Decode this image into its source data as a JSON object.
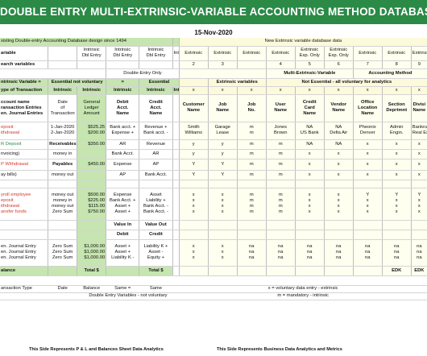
{
  "title": "DOUBLE ENTRY MULTI-EXTRINSIC-VARIABLE ACCOUNTING METHOD DATABASE",
  "date": "15-Nov-2020",
  "rows": [
    {
      "h": 10,
      "cells": [
        {
          "t": "xisting Double-entry Accounting Database design since 1494",
          "span": 5,
          "cls": "l g v"
        },
        {
          "t": "",
          "cls": "g v"
        },
        {
          "t": "New Extrinsic variable database data",
          "span": 9,
          "cls": "c y"
        }
      ]
    },
    {
      "h": 18,
      "cells": [
        {
          "t": "ariable",
          "cls": "l b v"
        },
        {
          "t": "",
          "cls": "v"
        },
        {
          "t": "Intrinsic\nDbl Entry",
          "cls": "c v"
        },
        {
          "t": "Intrinsic\nDbl Entry",
          "cls": "c v"
        },
        {
          "t": "Intrinsic\nDbl Entry",
          "cls": "c v"
        },
        {
          "t": "Intrinsic",
          "cls": "c v"
        },
        {
          "t": "Extrinsic",
          "cls": "c yl v"
        },
        {
          "t": "Extrinsic",
          "cls": "c yl v"
        },
        {
          "t": "Extrinsic",
          "cls": "c yl v"
        },
        {
          "t": "Extrinsic",
          "cls": "c yl v"
        },
        {
          "t": "Extrinsic\nExp. Only",
          "cls": "c yl v"
        },
        {
          "t": "Extrinsic\nExp. Only",
          "cls": "c yl v"
        },
        {
          "t": "Extrinsic",
          "cls": "c yl v"
        },
        {
          "t": "Extrinsic",
          "cls": "c yl v"
        },
        {
          "t": "Extrinsic",
          "cls": "c yl"
        }
      ]
    },
    {
      "h": 10,
      "cells": [
        {
          "t": "earch variables",
          "cls": "l b v"
        },
        {
          "t": "",
          "cls": "v"
        },
        {
          "t": "",
          "cls": "v"
        },
        {
          "t": "",
          "cls": "v"
        },
        {
          "t": "",
          "cls": "v"
        },
        {
          "t": "",
          "cls": "v"
        },
        {
          "t": "2",
          "cls": "c yl v"
        },
        {
          "t": "3",
          "cls": "c yl v"
        },
        {
          "t": "",
          "cls": "c yl v"
        },
        {
          "t": "4",
          "cls": "c yl v"
        },
        {
          "t": "5",
          "cls": "c yl v"
        },
        {
          "t": "6",
          "cls": "c yl v"
        },
        {
          "t": "7",
          "cls": "c yl v"
        },
        {
          "t": "8",
          "cls": "c yl v"
        },
        {
          "t": "9",
          "cls": "c yl"
        }
      ]
    },
    {
      "h": 12,
      "cells": [
        {
          "t": "",
          "span": 3,
          "cls": "v"
        },
        {
          "t": "Double-Entry Only",
          "span": 3,
          "cls": "c v"
        },
        {
          "t": "",
          "span": 3,
          "cls": "yl v"
        },
        {
          "t": "Multi-Extrinsic-Variable",
          "span": 3,
          "cls": "c b yl v"
        },
        {
          "t": "Accounting Method",
          "span": 3,
          "cls": "c b yl"
        }
      ]
    },
    {
      "h": 10,
      "cells": [
        {
          "t": "ntrinsic Variable   =",
          "cls": "l b g v"
        },
        {
          "t": "Essential not voluntary",
          "span": 2,
          "cls": "c b g v"
        },
        {
          "t": "=",
          "cls": "c b g v"
        },
        {
          "t": "Essential",
          "span": 2,
          "cls": "c b g v"
        },
        {
          "t": "",
          "cls": "y v"
        },
        {
          "t": "Extrinsic variables",
          "span": 2,
          "cls": "c b y v"
        },
        {
          "t": "Not Essential - all voluntary for analytics",
          "span": 6,
          "cls": "c b y"
        }
      ]
    },
    {
      "h": 10,
      "cells": [
        {
          "t": "ype of Transaction",
          "cls": "l b g v"
        },
        {
          "t": "Intrinsic",
          "cls": "c b g v"
        },
        {
          "t": "Intrinsic",
          "cls": "c b g v"
        },
        {
          "t": "Intrinsic",
          "cls": "c b g v"
        },
        {
          "t": "Intrinsic",
          "cls": "c b g v"
        },
        {
          "t": "Intrinsic",
          "cls": "c b g v"
        },
        {
          "t": "x",
          "cls": "c y v"
        },
        {
          "t": "x",
          "cls": "c y v"
        },
        {
          "t": "x",
          "cls": "c y v"
        },
        {
          "t": "x",
          "cls": "c y v"
        },
        {
          "t": "x",
          "cls": "c y v"
        },
        {
          "t": "x",
          "cls": "c y v"
        },
        {
          "t": "x",
          "cls": "c y v"
        },
        {
          "t": "x",
          "cls": "c y v"
        },
        {
          "t": "x",
          "cls": "c y"
        }
      ]
    },
    {
      "h": 34,
      "cells": [
        {
          "t": "ccount name\nransaction Entries\nen. Journal Entries",
          "cls": "l b v"
        },
        {
          "t": "Date\nof\nTransaction",
          "cls": "c v"
        },
        {
          "t": "General\nLedger\nAmount",
          "cls": "c g v"
        },
        {
          "t": "Debit\nAcct.\nName",
          "cls": "c b v"
        },
        {
          "t": "Credit\nAcct.\nName",
          "cls": "c b v"
        },
        {
          "t": "",
          "cls": "v"
        },
        {
          "t": "Customer\nName",
          "cls": "c b yl v"
        },
        {
          "t": "Job\nName",
          "cls": "c b yl v"
        },
        {
          "t": "Job\nNo.",
          "cls": "c b yl v"
        },
        {
          "t": "User\nName",
          "cls": "c b yl v"
        },
        {
          "t": "Credit\nCard\nName",
          "cls": "c b yl v"
        },
        {
          "t": "Vendor\nName",
          "cls": "c b yl v"
        },
        {
          "t": "Office\nLocation\nName",
          "cls": "c b yl v"
        },
        {
          "t": "Section\nDeprtmnt",
          "cls": "c b yl v"
        },
        {
          "t": "Divisi\nName",
          "cls": "c b yl"
        }
      ]
    },
    {
      "h": 22,
      "cells": [
        {
          "t": "eposit\nithdrawal",
          "cls": "l red v"
        },
        {
          "t": "1-Jan-2020\n2-Jan-2020",
          "cls": "c v"
        },
        {
          "t": "$525.25\n$200.00",
          "cls": "r g v"
        },
        {
          "t": "Bank acct. +\nExpense +",
          "cls": "c v"
        },
        {
          "t": "Revenue +\nBank acct. -",
          "cls": "c v"
        },
        {
          "t": "",
          "cls": "v"
        },
        {
          "t": "Smith\nWilliams",
          "cls": "c yl v"
        },
        {
          "t": "Garage\nLease",
          "cls": "c yl v"
        },
        {
          "t": "m\nm",
          "cls": "c yl v"
        },
        {
          "t": "Jones\nBrown",
          "cls": "c yl v"
        },
        {
          "t": "NA\nUS Bank",
          "cls": "c yl v"
        },
        {
          "t": "NA\nDelta Air",
          "cls": "c yl v"
        },
        {
          "t": "Pheonix\nDenver",
          "cls": "c yl v"
        },
        {
          "t": "Admin\nEngin.",
          "cls": "c yl v"
        },
        {
          "t": "Bankrup\nReal Est",
          "cls": "c yl"
        }
      ]
    },
    {
      "h": 12,
      "cells": [
        {
          "t": "R Deposit",
          "cls": "l grn v"
        },
        {
          "t": "Receivables",
          "cls": "c b v"
        },
        {
          "t": "$350.00",
          "cls": "r g v"
        },
        {
          "t": "AR",
          "cls": "c v"
        },
        {
          "t": "Revenue",
          "cls": "c v"
        },
        {
          "t": "",
          "cls": "v"
        },
        {
          "t": "y",
          "cls": "c yl v"
        },
        {
          "t": "y",
          "cls": "c yl v"
        },
        {
          "t": "m",
          "cls": "c yl v"
        },
        {
          "t": "m",
          "cls": "c yl v"
        },
        {
          "t": "NA",
          "cls": "c yl v"
        },
        {
          "t": "NA",
          "cls": "c yl v"
        },
        {
          "t": "x",
          "cls": "c yl v"
        },
        {
          "t": "x",
          "cls": "c yl v"
        },
        {
          "t": "x",
          "cls": "c yl"
        }
      ]
    },
    {
      "h": 12,
      "cells": [
        {
          "t": "nvoicing)",
          "cls": "l v"
        },
        {
          "t": "money in",
          "cls": "c v"
        },
        {
          "t": "",
          "cls": "g v"
        },
        {
          "t": "Bank Acct.",
          "cls": "c v"
        },
        {
          "t": "AR",
          "cls": "c v"
        },
        {
          "t": "",
          "cls": "v"
        },
        {
          "t": "y",
          "cls": "c yl v"
        },
        {
          "t": "y",
          "cls": "c yl v"
        },
        {
          "t": "m",
          "cls": "c yl v"
        },
        {
          "t": "m",
          "cls": "c yl v"
        },
        {
          "t": "x",
          "cls": "c yl v"
        },
        {
          "t": "x",
          "cls": "c yl v"
        },
        {
          "t": "x",
          "cls": "c yl v"
        },
        {
          "t": "x",
          "cls": "c yl v"
        },
        {
          "t": "x",
          "cls": "c yl"
        }
      ]
    },
    {
      "h": 14,
      "cells": [
        {
          "t": "P Withdrawal",
          "cls": "l red v"
        },
        {
          "t": "Payables",
          "cls": "c b v"
        },
        {
          "t": "$450.00",
          "cls": "r g v"
        },
        {
          "t": "Expense",
          "cls": "c v"
        },
        {
          "t": "AP",
          "cls": "c v"
        },
        {
          "t": "",
          "cls": "v"
        },
        {
          "t": "Y",
          "cls": "c yl v"
        },
        {
          "t": "Y",
          "cls": "c yl v"
        },
        {
          "t": "m",
          "cls": "c yl v"
        },
        {
          "t": "m",
          "cls": "c yl v"
        },
        {
          "t": "x",
          "cls": "c yl v"
        },
        {
          "t": "x",
          "cls": "c yl v"
        },
        {
          "t": "x",
          "cls": "c yl v"
        },
        {
          "t": "x",
          "cls": "c yl v"
        },
        {
          "t": "x",
          "cls": "c yl"
        }
      ]
    },
    {
      "h": 12,
      "cells": [
        {
          "t": "ay bills)",
          "cls": "l v"
        },
        {
          "t": "money out",
          "cls": "c v"
        },
        {
          "t": "",
          "cls": "g v"
        },
        {
          "t": "AP",
          "cls": "c v"
        },
        {
          "t": "Bank Acct.",
          "cls": "c v"
        },
        {
          "t": "",
          "cls": "v"
        },
        {
          "t": "Y",
          "cls": "c yl v"
        },
        {
          "t": "Y",
          "cls": "c yl v"
        },
        {
          "t": "m",
          "cls": "c yl v"
        },
        {
          "t": "m",
          "cls": "c yl v"
        },
        {
          "t": "x",
          "cls": "c yl v"
        },
        {
          "t": "x",
          "cls": "c yl v"
        },
        {
          "t": "x",
          "cls": "c yl v"
        },
        {
          "t": "x",
          "cls": "c yl v"
        },
        {
          "t": "x",
          "cls": "c yl"
        }
      ]
    },
    {
      "h": 10,
      "cells": [
        {
          "t": "",
          "cls": "v"
        },
        {
          "t": "",
          "cls": "v"
        },
        {
          "t": "",
          "cls": "g v"
        },
        {
          "t": "",
          "cls": "v"
        },
        {
          "t": "",
          "cls": "v"
        },
        {
          "t": "",
          "cls": "v"
        },
        {
          "t": "",
          "cls": "yl v"
        },
        {
          "t": "",
          "cls": "yl v"
        },
        {
          "t": "",
          "cls": "yl v"
        },
        {
          "t": "",
          "cls": "yl v"
        },
        {
          "t": "",
          "cls": "yl v"
        },
        {
          "t": "",
          "cls": "yl v"
        },
        {
          "t": "",
          "cls": "yl v"
        },
        {
          "t": "",
          "cls": "yl v"
        },
        {
          "t": "",
          "cls": "yl"
        }
      ]
    },
    {
      "h": 40,
      "cells": [
        {
          "t": "yroll employee\neposit\nithdrawal\nansfer funds",
          "cls": "l red v"
        },
        {
          "t": "money out\nmoney in\nmoney out\nZero Sum",
          "cls": "c v"
        },
        {
          "t": "$500.00\n$225.00\n$115.00\n$750.00",
          "cls": "r g v"
        },
        {
          "t": "Expense\nBank Acct. +\nAsset +\nAsset +",
          "cls": "c v"
        },
        {
          "t": "Asset\nLiability +\nBank Acct. -\nBank Acct. -",
          "cls": "c v"
        },
        {
          "t": "",
          "cls": "v"
        },
        {
          "t": "x\nx\nx\nx",
          "cls": "c yl v"
        },
        {
          "t": "x\nx\nx\nx",
          "cls": "c yl v"
        },
        {
          "t": "m\nm\nm\nm",
          "cls": "c yl v"
        },
        {
          "t": "m\nm\nm\nm",
          "cls": "c yl v"
        },
        {
          "t": "x\nx\nx\nx",
          "cls": "c yl v"
        },
        {
          "t": "x\nx\nx\nx",
          "cls": "c yl v"
        },
        {
          "t": "Y\nx\nx\nx",
          "cls": "c yl v"
        },
        {
          "t": "Y\nx\nx\nx",
          "cls": "c yl v"
        },
        {
          "t": "Y\nx\nx\nx",
          "cls": "c yl"
        }
      ]
    },
    {
      "h": 12,
      "cells": [
        {
          "t": "",
          "cls": "v"
        },
        {
          "t": "",
          "cls": "v"
        },
        {
          "t": "",
          "cls": "g v"
        },
        {
          "t": "Value In",
          "cls": "c b v"
        },
        {
          "t": "Value Out",
          "cls": "c b v"
        },
        {
          "t": "",
          "cls": "v"
        },
        {
          "t": "",
          "cls": "yl v"
        },
        {
          "t": "",
          "cls": "yl v"
        },
        {
          "t": "",
          "cls": "yl v"
        },
        {
          "t": "",
          "cls": "yl v"
        },
        {
          "t": "",
          "cls": "yl v"
        },
        {
          "t": "",
          "cls": "yl v"
        },
        {
          "t": "",
          "cls": "yl v"
        },
        {
          "t": "",
          "cls": "yl v"
        },
        {
          "t": "",
          "cls": "yl"
        }
      ]
    },
    {
      "h": 12,
      "cells": [
        {
          "t": "",
          "cls": "v"
        },
        {
          "t": "",
          "cls": "v"
        },
        {
          "t": "",
          "cls": "g v"
        },
        {
          "t": "Debit",
          "cls": "c b v"
        },
        {
          "t": "Credit",
          "cls": "c b v"
        },
        {
          "t": "",
          "cls": "v"
        },
        {
          "t": "",
          "cls": "yl v"
        },
        {
          "t": "",
          "cls": "yl v"
        },
        {
          "t": "",
          "cls": "yl v"
        },
        {
          "t": "",
          "cls": "yl v"
        },
        {
          "t": "",
          "cls": "yl v"
        },
        {
          "t": "",
          "cls": "yl v"
        },
        {
          "t": "",
          "cls": "yl v"
        },
        {
          "t": "",
          "cls": "yl v"
        },
        {
          "t": "",
          "cls": "yl"
        }
      ]
    },
    {
      "h": 33,
      "cells": [
        {
          "t": "en. Journal Entry\nen. Journal Entry\nen. Journal Entry",
          "cls": "l v"
        },
        {
          "t": "Zero Sum\nZero Sum\nZero Sum",
          "cls": "c v"
        },
        {
          "t": "$1,000.00\n$1,000.00\n$1,000.00",
          "cls": "r g v"
        },
        {
          "t": "Asset +\nAsset +\nLiability K -",
          "cls": "c v"
        },
        {
          "t": "Liability K +\nAsset -\nEquity +",
          "cls": "c v"
        },
        {
          "t": "",
          "cls": "v"
        },
        {
          "t": "x\nx\nx",
          "cls": "c yl v"
        },
        {
          "t": "x\nx\nx",
          "cls": "c yl v"
        },
        {
          "t": "na\nna\nna",
          "cls": "c yl v"
        },
        {
          "t": "na\nna\nna",
          "cls": "c yl v"
        },
        {
          "t": "na\nna\nna",
          "cls": "c yl v"
        },
        {
          "t": "na\nna\nna",
          "cls": "c yl v"
        },
        {
          "t": "na\nna\nna",
          "cls": "c yl v"
        },
        {
          "t": "na\nna\nna",
          "cls": "c yl v"
        },
        {
          "t": "na\nna\nna",
          "cls": "c yl"
        }
      ]
    },
    {
      "h": 12,
      "cells": [
        {
          "t": "alance",
          "cls": "l b g v"
        },
        {
          "t": "",
          "cls": "g v"
        },
        {
          "t": "Total $",
          "cls": "c b g v"
        },
        {
          "t": "",
          "cls": "g v"
        },
        {
          "t": "Total $",
          "cls": "c b g v"
        },
        {
          "t": "",
          "cls": "v"
        },
        {
          "t": "",
          "cls": "yl v"
        },
        {
          "t": "",
          "cls": "yl v"
        },
        {
          "t": "",
          "cls": "yl v"
        },
        {
          "t": "",
          "cls": "yl v"
        },
        {
          "t": "",
          "cls": "yl v"
        },
        {
          "t": "",
          "cls": "yl v"
        },
        {
          "t": "",
          "cls": "yl v"
        },
        {
          "t": "EDK",
          "cls": "c b yl v"
        },
        {
          "t": "EDK",
          "cls": "c b yl"
        }
      ]
    },
    {
      "h": 12,
      "cells": [
        {
          "t": "",
          "span": 15,
          "cls": ""
        }
      ]
    },
    {
      "h": 9,
      "cells": [
        {
          "t": "ansaction Type",
          "cls": "l"
        },
        {
          "t": "Date",
          "cls": "c"
        },
        {
          "t": "Balance",
          "cls": "c"
        },
        {
          "t": "Same =",
          "cls": "c"
        },
        {
          "t": "Same",
          "cls": "c"
        },
        {
          "t": "",
          "cls": ""
        },
        {
          "t": "x = voluntary data entry - extrinsic",
          "span": 9,
          "cls": "c"
        }
      ]
    },
    {
      "h": 9,
      "cells": [
        {
          "t": "",
          "span": 2,
          "cls": ""
        },
        {
          "t": "Double Entry Variables - not voluntary",
          "span": 4,
          "cls": "c"
        },
        {
          "t": "m = mandatory - intrinsic",
          "span": 9,
          "cls": "c"
        }
      ]
    }
  ],
  "footer": {
    "left": "This Side Represents P & L and Balances Sheet Data Analytics",
    "right": "This Side Represents Business Data Analytics and Metrics"
  }
}
